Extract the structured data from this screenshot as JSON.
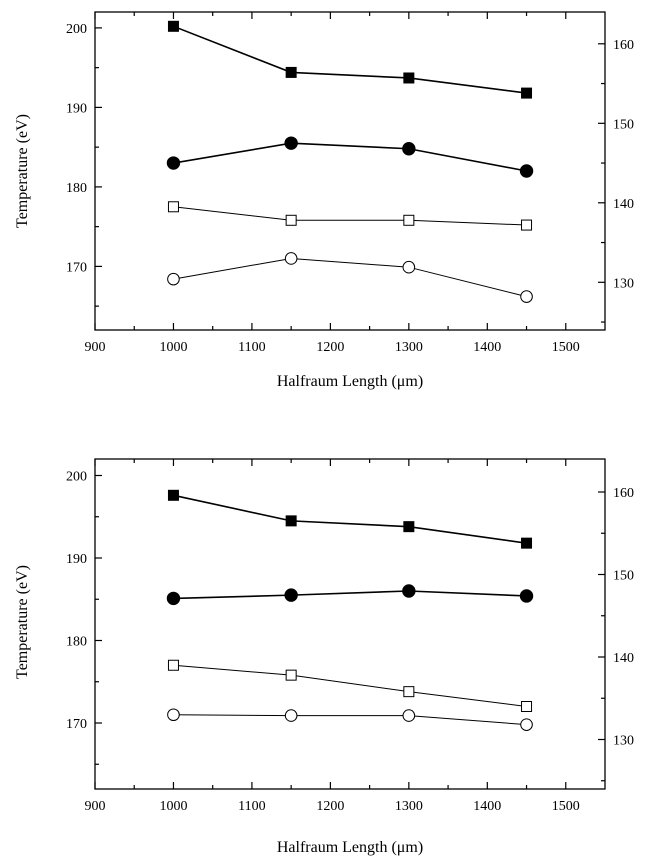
{
  "chart_data": [
    {
      "type": "line",
      "xlabel": "Halfraum Length (μm)",
      "ylabel": "Temperature (eV)",
      "xlim": [
        900,
        1550
      ],
      "xticks": [
        900,
        1000,
        1100,
        1200,
        1300,
        1400,
        1500
      ],
      "ylim_left": [
        162,
        202
      ],
      "yticks_left": [
        170,
        180,
        190,
        200
      ],
      "ylim_right": [
        124,
        164
      ],
      "yticks_right": [
        130,
        140,
        150,
        160
      ],
      "grid": false,
      "x": [
        1000,
        1150,
        1300,
        1450
      ],
      "series": [
        {
          "marker": "filled-square",
          "axis": "left",
          "values": [
            200.2,
            194.4,
            193.7,
            191.8
          ]
        },
        {
          "marker": "filled-circle",
          "axis": "left",
          "values": [
            183.0,
            185.5,
            184.8,
            182.0
          ]
        },
        {
          "marker": "open-square",
          "axis": "left",
          "values": [
            177.5,
            175.8,
            175.8,
            175.2
          ]
        },
        {
          "marker": "open-circle",
          "axis": "left",
          "values": [
            168.4,
            171.0,
            169.9,
            166.2
          ]
        }
      ]
    },
    {
      "type": "line",
      "xlabel": "Halfraum Length (μm)",
      "ylabel": "Temperature (eV)",
      "xlim": [
        900,
        1550
      ],
      "xticks": [
        900,
        1000,
        1100,
        1200,
        1300,
        1400,
        1500
      ],
      "ylim_left": [
        162,
        202
      ],
      "yticks_left": [
        170,
        180,
        190,
        200
      ],
      "ylim_right": [
        124,
        164
      ],
      "yticks_right": [
        130,
        140,
        150,
        160
      ],
      "grid": false,
      "x": [
        1000,
        1150,
        1300,
        1450
      ],
      "series": [
        {
          "marker": "filled-square",
          "axis": "left",
          "values": [
            197.6,
            194.5,
            193.8,
            191.8
          ]
        },
        {
          "marker": "filled-circle",
          "axis": "left",
          "values": [
            185.1,
            185.5,
            186.0,
            185.4
          ]
        },
        {
          "marker": "open-square",
          "axis": "left",
          "values": [
            177.0,
            175.8,
            173.8,
            172.0
          ]
        },
        {
          "marker": "open-circle",
          "axis": "left",
          "values": [
            171.0,
            170.9,
            170.9,
            169.8
          ]
        }
      ]
    }
  ]
}
